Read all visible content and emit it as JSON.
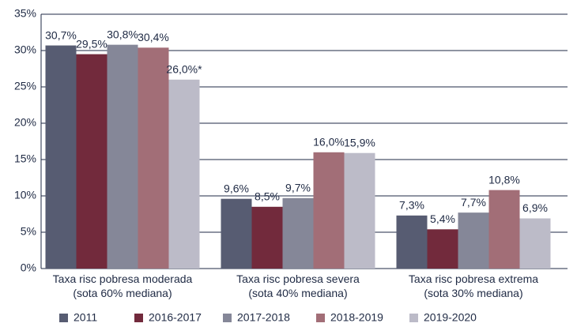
{
  "chart_data": {
    "type": "bar",
    "categories": [
      "Taxa risc pobresa moderada\n(sota 60% mediana)",
      "Taxa risc pobresa severa\n(sota 40% mediana)",
      "Taxa risc pobresa extrema\n(sota 30% mediana)"
    ],
    "series": [
      {
        "name": "2011",
        "color": "#575c72",
        "values": [
          30.7,
          9.6,
          7.3
        ],
        "value_labels": [
          "30,7%",
          "9,6%",
          "7,3%"
        ]
      },
      {
        "name": "2016-2017",
        "color": "#722a3c",
        "values": [
          29.5,
          8.5,
          5.4
        ],
        "value_labels": [
          "29,5%",
          "8,5%",
          "5,4%"
        ]
      },
      {
        "name": "2017-2018",
        "color": "#858798",
        "values": [
          30.8,
          9.7,
          7.7
        ],
        "value_labels": [
          "30,8%",
          "9,7%",
          "7,7%"
        ]
      },
      {
        "name": "2018-2019",
        "color": "#a26e77",
        "values": [
          30.4,
          16.0,
          10.8
        ],
        "value_labels": [
          "30,4%",
          "16,0%",
          "10,8%"
        ]
      },
      {
        "name": "2019-2020",
        "color": "#bcbbc8",
        "values": [
          26.0,
          15.9,
          6.9
        ],
        "value_labels": [
          "26,0%*",
          "15,9%",
          "6,9%"
        ]
      }
    ],
    "ylim": [
      0,
      35
    ],
    "yticks": [
      {
        "value": 0,
        "label": "0%"
      },
      {
        "value": 5,
        "label": "5%"
      },
      {
        "value": 10,
        "label": "10%"
      },
      {
        "value": 15,
        "label": "15%"
      },
      {
        "value": 20,
        "label": "20%"
      },
      {
        "value": 25,
        "label": "25%"
      },
      {
        "value": 30,
        "label": "30%"
      },
      {
        "value": 35,
        "label": "35%"
      }
    ],
    "grid": true,
    "legend": "bottom"
  }
}
